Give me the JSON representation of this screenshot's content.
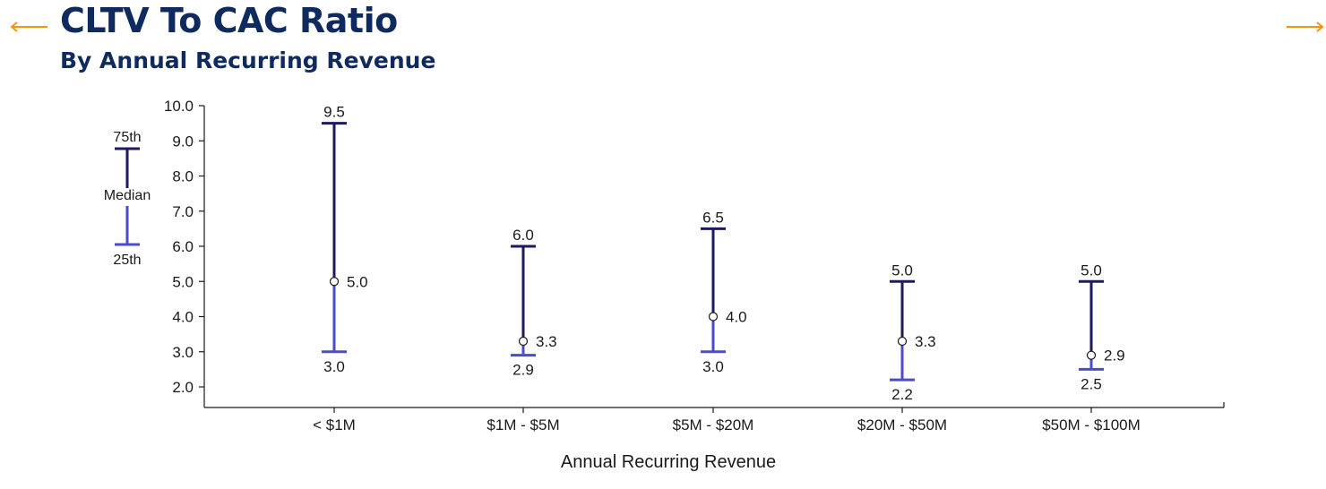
{
  "header": {
    "title": "CLTV To CAC Ratio",
    "subtitle": "By Annual Recurring Revenue"
  },
  "nav": {
    "prev_icon": "arrow-left-icon",
    "next_icon": "arrow-right-icon",
    "arrow_color": "#f0950c"
  },
  "legend": {
    "top_label": "75th",
    "middle_label": "Median",
    "bottom_label": "25th"
  },
  "colors": {
    "upper_range": "#1e1a5e",
    "lower_range": "#4b4bcc",
    "title": "#0f2a5e"
  },
  "chart_data": {
    "type": "range",
    "xlabel": "Annual Recurring Revenue",
    "ylabel": "",
    "ylim": [
      2.0,
      10.0
    ],
    "yticks": [
      "2.0",
      "3.0",
      "4.0",
      "5.0",
      "6.0",
      "7.0",
      "8.0",
      "9.0",
      "10.0"
    ],
    "grid": false,
    "legend_position": "top-left",
    "categories": [
      "< $1M",
      "$1M - $5M",
      "$5M - $20M",
      "$20M - $50M",
      "$50M - $100M"
    ],
    "series": [
      {
        "name": "75th",
        "values": [
          9.5,
          6.0,
          6.5,
          5.0,
          5.0
        ]
      },
      {
        "name": "Median",
        "values": [
          5.0,
          3.3,
          4.0,
          3.3,
          2.9
        ]
      },
      {
        "name": "25th",
        "values": [
          3.0,
          2.9,
          3.0,
          2.2,
          2.5
        ]
      }
    ],
    "labels": {
      "p75": [
        "9.5",
        "6.0",
        "6.5",
        "5.0",
        "5.0"
      ],
      "median": [
        "5.0",
        "3.3",
        "4.0",
        "3.3",
        "2.9"
      ],
      "p25": [
        "3.0",
        "2.9",
        "3.0",
        "2.2",
        "2.5"
      ]
    }
  }
}
